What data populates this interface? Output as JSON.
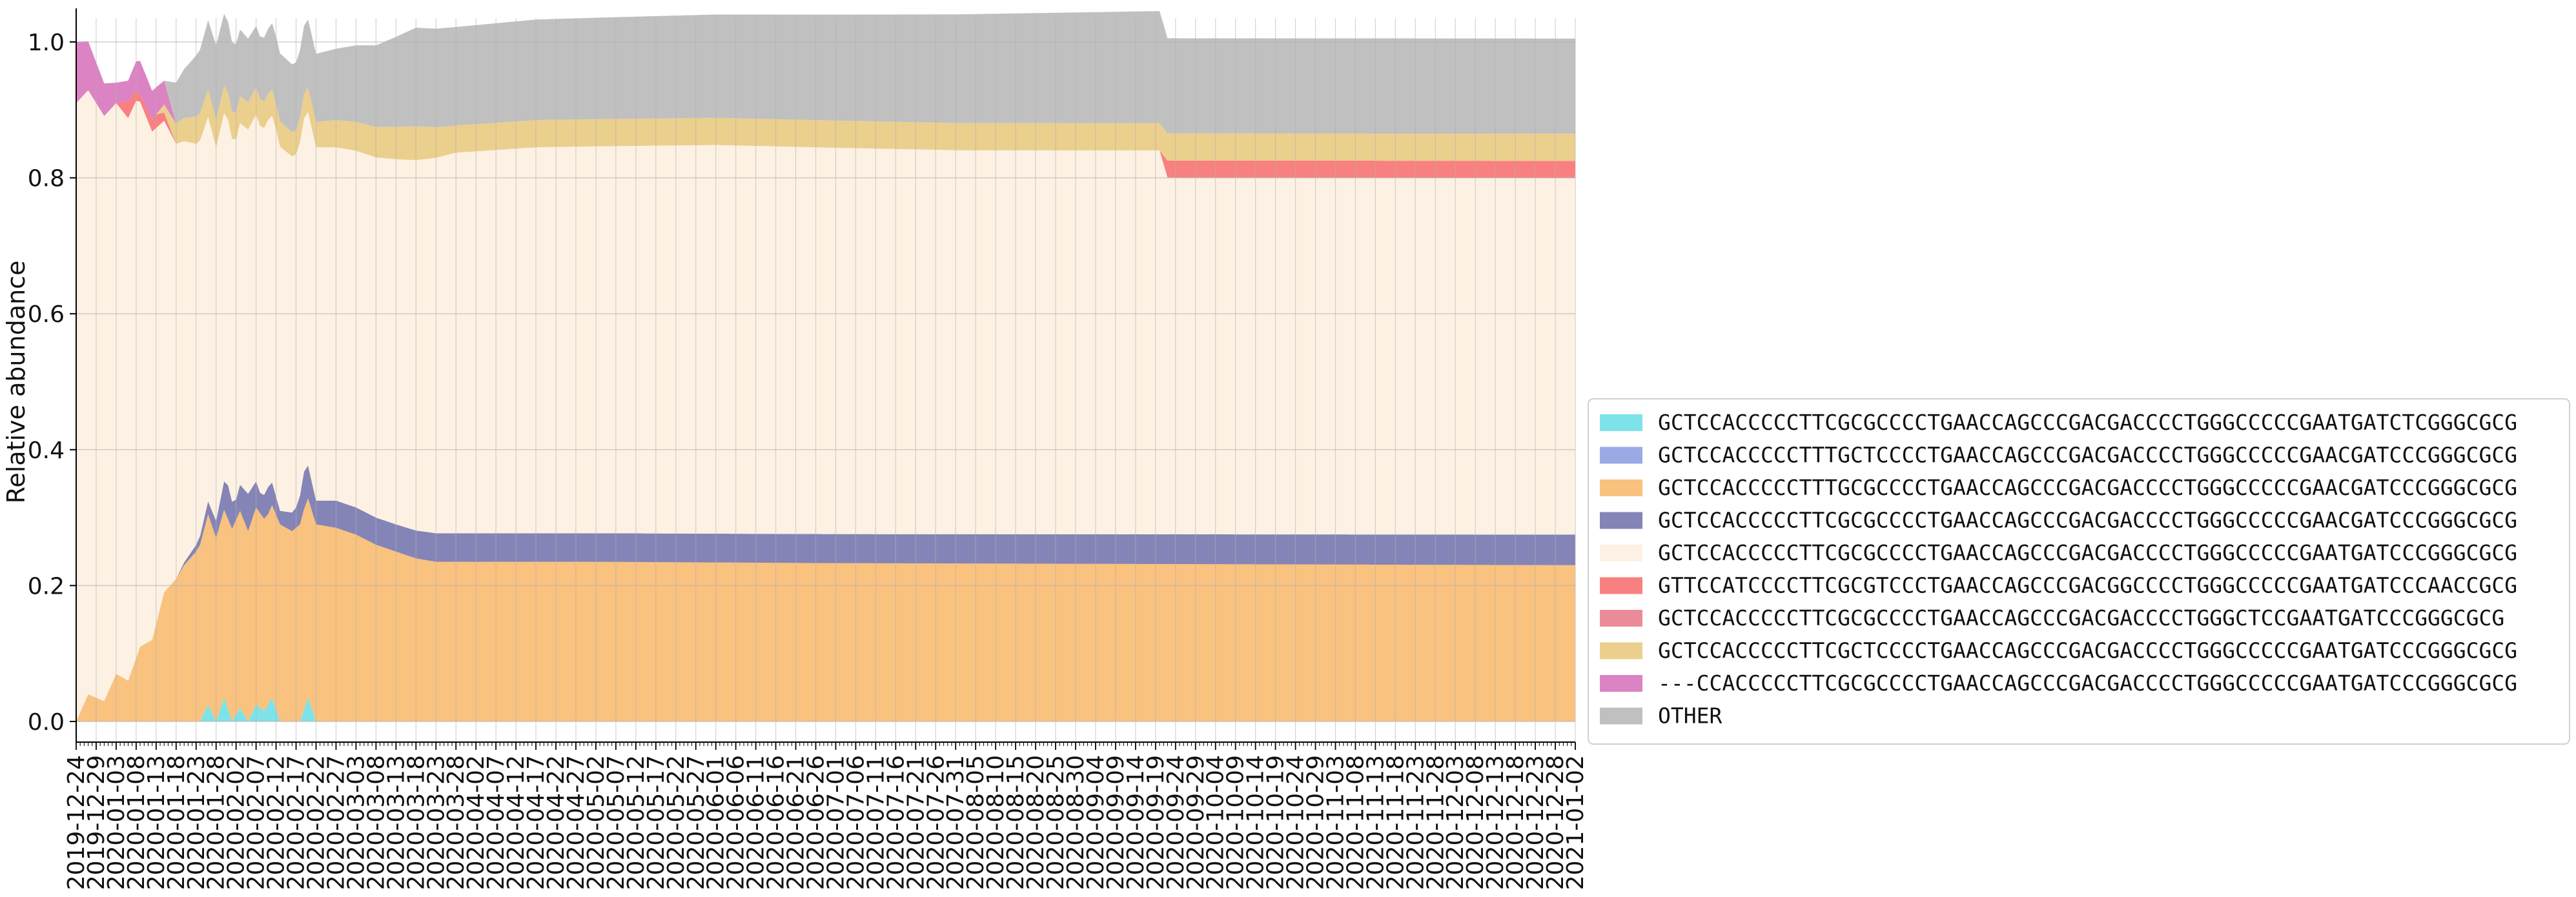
{
  "chart_data": {
    "type": "area",
    "stacked": true,
    "ylabel": "Relative abundance",
    "xlabel": "",
    "title": "",
    "ylim": [
      0,
      1
    ],
    "y_ticks": [
      "0.0",
      "0.2",
      "0.4",
      "0.6",
      "0.8",
      "1.0"
    ],
    "x_start": "2019-12-24",
    "x_end": "2021-01-02",
    "x_tick_step_days": 5,
    "x_tick_format": "YYYY-MM-DD",
    "grid": true,
    "legend_placement": "right",
    "series": [
      {
        "name": "GCTCCACCCCCTTCGCGCCCCTGAACCAGCCCGACGACCCCTGGGCCCCCGAATGATCTCGGGCGCG",
        "color": "#7ee3e8",
        "points": [
          [
            "2019-12-24",
            0
          ],
          [
            "2020-01-24",
            0
          ],
          [
            "2020-01-26",
            0.025
          ],
          [
            "2020-01-28",
            0
          ],
          [
            "2020-01-30",
            0.035
          ],
          [
            "2020-02-01",
            0
          ],
          [
            "2020-02-03",
            0.02
          ],
          [
            "2020-02-05",
            0
          ],
          [
            "2020-02-07",
            0.025
          ],
          [
            "2020-02-09",
            0.015
          ],
          [
            "2020-02-11",
            0.035
          ],
          [
            "2020-02-13",
            0
          ],
          [
            "2020-02-18",
            0
          ],
          [
            "2020-02-20",
            0.035
          ],
          [
            "2020-02-22",
            0
          ],
          [
            "2021-01-02",
            0
          ]
        ]
      },
      {
        "name": "GCTCCACCCCCTTTGCTCCCCTGAACCAGCCCGACGACCCCTGGGCCCCCGAACGATCCCGGGCGCG",
        "color": "#9aaae6",
        "points": [
          [
            "2019-12-24",
            0
          ],
          [
            "2021-01-02",
            0
          ]
        ]
      },
      {
        "name": "GCTCCACCCCCTTTGCGCCCCTGAACCAGCCCGACGACCCCTGGGCCCCCGAACGATCCCGGGCGCG",
        "color": "#f9c27e",
        "points": [
          [
            "2019-12-24",
            0
          ],
          [
            "2019-12-27",
            0.04
          ],
          [
            "2019-12-31",
            0.03
          ],
          [
            "2020-01-03",
            0.07
          ],
          [
            "2020-01-06",
            0.06
          ],
          [
            "2020-01-09",
            0.11
          ],
          [
            "2020-01-12",
            0.12
          ],
          [
            "2020-01-15",
            0.19
          ],
          [
            "2020-01-18",
            0.21
          ],
          [
            "2020-01-20",
            0.23
          ],
          [
            "2020-01-23",
            0.25
          ],
          [
            "2020-01-26",
            0.28
          ],
          [
            "2020-01-28",
            0.27
          ],
          [
            "2020-01-31",
            0.28
          ],
          [
            "2020-02-03",
            0.29
          ],
          [
            "2020-02-05",
            0.28
          ],
          [
            "2020-02-07",
            0.29
          ],
          [
            "2020-02-10",
            0.28
          ],
          [
            "2020-02-13",
            0.29
          ],
          [
            "2020-02-16",
            0.28
          ],
          [
            "2020-02-19",
            0.295
          ],
          [
            "2020-02-22",
            0.29
          ],
          [
            "2020-02-27",
            0.285
          ],
          [
            "2020-03-03",
            0.275
          ],
          [
            "2020-03-08",
            0.26
          ],
          [
            "2020-03-13",
            0.25
          ],
          [
            "2020-03-18",
            0.24
          ],
          [
            "2020-03-23",
            0.235
          ],
          [
            "2020-04-02",
            0.235
          ],
          [
            "2020-05-02",
            0.235
          ],
          [
            "2020-07-01",
            0.233
          ],
          [
            "2020-09-01",
            0.232
          ],
          [
            "2021-01-02",
            0.23
          ]
        ]
      },
      {
        "name": "GCTCCACCCCCTTCGCGCCCCTGAACCAGCCCGACGACCCCTGGGCCCCCGAACGATCCCGGGCGCG",
        "color": "#8584b6",
        "points": [
          [
            "2019-12-24",
            0
          ],
          [
            "2020-01-18",
            0
          ],
          [
            "2020-01-23",
            0.01
          ],
          [
            "2020-01-28",
            0.025
          ],
          [
            "2020-01-31",
            0.05
          ],
          [
            "2020-02-02",
            0.03
          ],
          [
            "2020-02-05",
            0.055
          ],
          [
            "2020-02-08",
            0.03
          ],
          [
            "2020-02-10",
            0.04
          ],
          [
            "2020-02-13",
            0.02
          ],
          [
            "2020-02-17",
            0.03
          ],
          [
            "2020-02-19",
            0.055
          ],
          [
            "2020-02-22",
            0.035
          ],
          [
            "2020-02-27",
            0.04
          ],
          [
            "2020-03-03",
            0.04
          ],
          [
            "2020-03-13",
            0.04
          ],
          [
            "2020-03-23",
            0.042
          ],
          [
            "2020-05-02",
            0.042
          ],
          [
            "2021-01-02",
            0.045
          ]
        ]
      },
      {
        "name": "GCTCCACCCCCTTCGCGCCCCTGAACCAGCCCGACGACCCCTGGGCCCCCGAATGATCCCGGGCGCG",
        "color": "#fdf1e3",
        "points": [
          [
            "2019-12-24",
            0.91
          ],
          [
            "2020-01-03",
            0.84
          ],
          [
            "2020-01-08",
            0.82
          ],
          [
            "2020-01-13",
            0.73
          ],
          [
            "2020-01-18",
            0.64
          ],
          [
            "2020-01-23",
            0.59
          ],
          [
            "2020-01-28",
            0.55
          ],
          [
            "2020-02-02",
            0.53
          ],
          [
            "2020-02-07",
            0.54
          ],
          [
            "2020-02-12",
            0.54
          ],
          [
            "2020-02-17",
            0.52
          ],
          [
            "2020-02-22",
            0.52
          ],
          [
            "2020-02-27",
            0.52
          ],
          [
            "2020-03-08",
            0.53
          ],
          [
            "2020-03-18",
            0.545
          ],
          [
            "2020-03-28",
            0.56
          ],
          [
            "2020-04-17",
            0.568
          ],
          [
            "2020-06-01",
            0.572
          ],
          [
            "2020-08-01",
            0.565
          ],
          [
            "2020-09-20",
            0.565
          ],
          [
            "2020-09-22",
            0.525
          ],
          [
            "2021-01-02",
            0.525
          ]
        ]
      },
      {
        "name": "GTTCCATCCCCTTCGCGTCCCTGAACCAGCCCGACGGCCCCTGGGCCCCCGAATGATCCCAACCGCG",
        "color": "#f98080",
        "points": [
          [
            "2019-12-24",
            0
          ],
          [
            "2020-01-03",
            0
          ],
          [
            "2020-01-06",
            0.025
          ],
          [
            "2020-01-09",
            0.01
          ],
          [
            "2020-01-13",
            0.02
          ],
          [
            "2020-01-18",
            0
          ],
          [
            "2020-09-20",
            0
          ],
          [
            "2020-09-22",
            0.025
          ],
          [
            "2021-01-02",
            0.025
          ]
        ]
      },
      {
        "name": "GCTCCACCCCCTTCGCGCCCCTGAACCAGCCCGACGACCCCTGGGCTCCGAATGATCCCGGGCGCG",
        "color": "#ea8c98",
        "points": [
          [
            "2019-12-24",
            0
          ],
          [
            "2021-01-02",
            0
          ]
        ]
      },
      {
        "name": "GCTCCACCCCCTTCGCTCCCCTGAACCAGCCCGACGACCCCTGGGCCCCCGAATGATCCCGGGCGCG",
        "color": "#ebcf8d",
        "points": [
          [
            "2019-12-24",
            0
          ],
          [
            "2020-01-13",
            0
          ],
          [
            "2020-01-18",
            0.03
          ],
          [
            "2020-01-23",
            0.04
          ],
          [
            "2020-01-28",
            0.04
          ],
          [
            "2020-02-07",
            0.04
          ],
          [
            "2020-02-17",
            0.035
          ],
          [
            "2020-02-27",
            0.04
          ],
          [
            "2020-03-08",
            0.045
          ],
          [
            "2020-03-18",
            0.05
          ],
          [
            "2020-03-28",
            0.04
          ],
          [
            "2020-05-02",
            0.04
          ],
          [
            "2020-07-01",
            0.04
          ],
          [
            "2020-09-20",
            0.04
          ],
          [
            "2020-09-22",
            0.04
          ],
          [
            "2021-01-02",
            0.04
          ]
        ]
      },
      {
        "name": "---CCACCCCCTTCGCGCCCCTGAACCAGCCCGACGACCCCTGGGCCCCCGAATGATCCCGGGCGCG",
        "color": "#dc83c3",
        "points": [
          [
            "2019-12-24",
            0.09
          ],
          [
            "2020-01-03",
            0.03
          ],
          [
            "2020-01-06",
            0.03
          ],
          [
            "2020-01-09",
            0.05
          ],
          [
            "2020-01-13",
            0.04
          ],
          [
            "2020-01-15",
            0.035
          ],
          [
            "2020-01-18",
            0
          ],
          [
            "2021-01-02",
            0
          ]
        ]
      },
      {
        "name": "OTHER",
        "color": "#c0c0c0",
        "points": [
          [
            "2019-12-24",
            0
          ],
          [
            "2020-01-15",
            0
          ],
          [
            "2020-01-18",
            0.06
          ],
          [
            "2020-01-23",
            0.09
          ],
          [
            "2020-01-28",
            0.11
          ],
          [
            "2020-02-02",
            0.1
          ],
          [
            "2020-02-07",
            0.09
          ],
          [
            "2020-02-12",
            0.1
          ],
          [
            "2020-02-17",
            0.1
          ],
          [
            "2020-02-22",
            0.1
          ],
          [
            "2020-02-27",
            0.105
          ],
          [
            "2020-03-08",
            0.12
          ],
          [
            "2020-03-18",
            0.145
          ],
          [
            "2020-03-28",
            0.145
          ],
          [
            "2020-04-17",
            0.148
          ],
          [
            "2020-06-01",
            0.152
          ],
          [
            "2020-08-01",
            0.16
          ],
          [
            "2020-09-20",
            0.165
          ],
          [
            "2020-09-22",
            0.14
          ],
          [
            "2021-01-02",
            0.14
          ]
        ]
      }
    ]
  }
}
